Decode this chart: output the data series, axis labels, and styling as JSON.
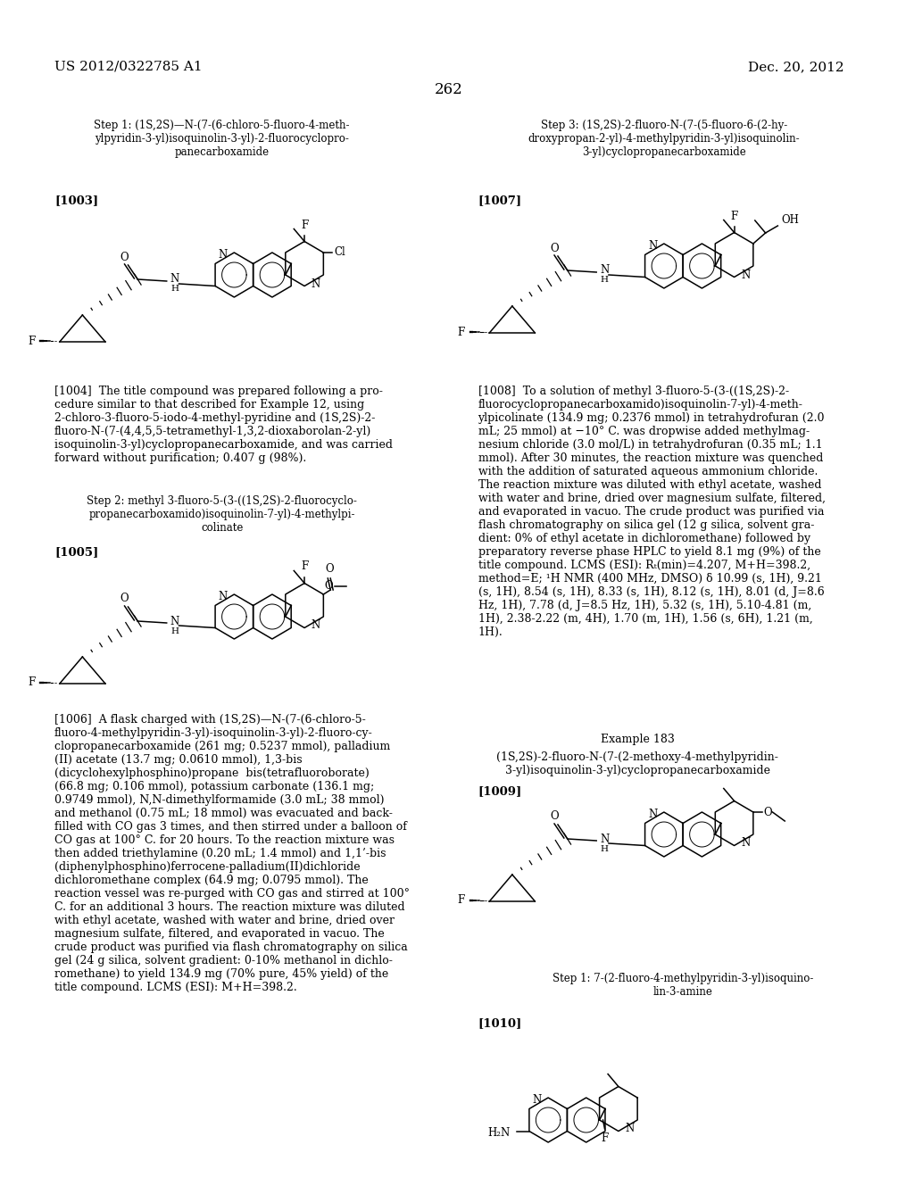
{
  "bg": "#ffffff",
  "header_left": "US 2012/0322785 A1",
  "header_right": "Dec. 20, 2012",
  "page_number": "262",
  "step1_title": "Step 1: (1S,2S)—N-(7-(6-chloro-5-fluoro-4-meth-\nylpyridin-3-yl)isoquinolin-3-yl)-2-fluorocyclopro-\npanecarboxamide",
  "step3_title": "Step 3: (1S,2S)-2-fluoro-N-(7-(5-fluoro-6-(2-hy-\ndroxypropan-2-yl)-4-methylpyridin-3-yl)isoquinolin-\n3-yl)cyclopropanecarboxamide",
  "label_1003": "[1003]",
  "label_1004_text": "[1004]  The title compound was prepared following a pro-\ncedure similar to that described for Example 12, using\n2-chloro-3-fluoro-5-iodo-4-methyl-pyridine and (1S,2S)-2-\nfluoro-N-(7-(4,4,5,5-tetramethyl-1,3,2-dioxaborolan-2-yl)\nisoquinolin-3-yl)cyclopropanecarboxamide, and was carried\nforward without purification; 0.407 g (98%).",
  "step2_title": "Step 2: methyl 3-fluoro-5-(3-((1S,2S)-2-fluorocyclo-\npropanecarboxamido)isoquinolin-7-yl)-4-methylpi-\ncolinate",
  "label_1005": "[1005]",
  "label_1006_text": "[1006]  A flask charged with (1S,2S)—N-(7-(6-chloro-5-\nfluoro-4-methylpyridin-3-yl)-isoquinolin-3-yl)-2-fluoro-cy-\nclopropanecarboxamide (261 mg; 0.5237 mmol), palladium\n(II) acetate (13.7 mg; 0.0610 mmol), 1,3-bis\n(dicyclohexylphosphino)propane  bis(tetrafluoroborate)\n(66.8 mg; 0.106 mmol), potassium carbonate (136.1 mg;\n0.9749 mmol), N,N-dimethylformamide (3.0 mL; 38 mmol)\nand methanol (0.75 mL; 18 mmol) was evacuated and back-\nfilled with CO gas 3 times, and then stirred under a balloon of\nCO gas at 100° C. for 20 hours. To the reaction mixture was\nthen added triethylamine (0.20 mL; 1.4 mmol) and 1,1’-bis\n(diphenylphosphino)ferrocene-palladium(II)dichloride\ndichloromethane complex (64.9 mg; 0.0795 mmol). The\nreaction vessel was re-purged with CO gas and stirred at 100°\nC. for an additional 3 hours. The reaction mixture was diluted\nwith ethyl acetate, washed with water and brine, dried over\nmagnesium sulfate, filtered, and evaporated in vacuo. The\ncrude product was purified via flash chromatography on silica\ngel (24 g silica, solvent gradient: 0-10% methanol in dichlo-\nromethane) to yield 134.9 mg (70% pure, 45% yield) of the\ntitle compound. LCMS (ESI): M+H=398.2.",
  "label_1007": "[1007]",
  "label_1008_text": "[1008]  To a solution of methyl 3-fluoro-5-(3-((1S,2S)-2-\nfluorocyclopropanecarboxamido)isoquinolin-7-yl)-4-meth-\nylpicolinate (134.9 mg; 0.2376 mmol) in tetrahydrofuran (2.0\nmL; 25 mmol) at −10° C. was dropwise added methylmag-\nnesium chloride (3.0 mol/L) in tetrahydrofuran (0.35 mL; 1.1\nmmol). After 30 minutes, the reaction mixture was quenched\nwith the addition of saturated aqueous ammonium chloride.\nThe reaction mixture was diluted with ethyl acetate, washed\nwith water and brine, dried over magnesium sulfate, filtered,\nand evaporated in vacuo. The crude product was purified via\nflash chromatography on silica gel (12 g silica, solvent gra-\ndient: 0% of ethyl acetate in dichloromethane) followed by\npreparatory reverse phase HPLC to yield 8.1 mg (9%) of the\ntitle compound. LCMS (ESI): Rₜ(min)=4.207, M+H=398.2,\nmethod=E; ¹H NMR (400 MHz, DMSO) δ 10.99 (s, 1H), 9.21\n(s, 1H), 8.54 (s, 1H), 8.33 (s, 1H), 8.12 (s, 1H), 8.01 (d, J=8.6\nHz, 1H), 7.78 (d, J=8.5 Hz, 1H), 5.32 (s, 1H), 5.10-4.81 (m,\n1H), 2.38-2.22 (m, 4H), 1.70 (m, 1H), 1.56 (s, 6H), 1.21 (m,\n1H).",
  "example183_head": "Example 183",
  "example183_sub": "(1S,2S)-2-fluoro-N-(7-(2-methoxy-4-methylpyridin-\n3-yl)isoquinolin-3-yl)cyclopropanecarboxamide",
  "label_1009": "[1009]",
  "step1b_title": "Step 1: 7-(2-fluoro-4-methylpyridin-3-yl)isoquino-\nlin-3-amine",
  "label_1010": "[1010]"
}
